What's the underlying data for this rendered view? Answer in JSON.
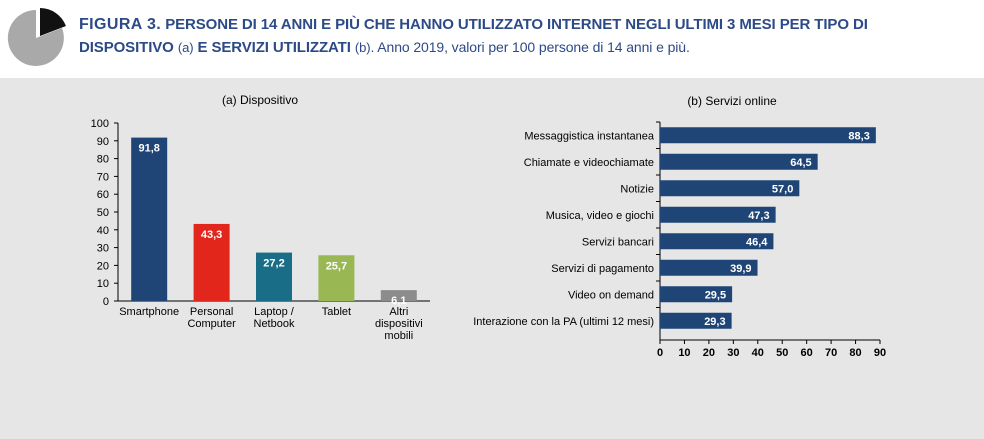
{
  "header": {
    "figure_label": "FIGURA 3.",
    "title_line1": "PERSONE DI 14 ANNI E PIÙ CHE HANNO UTILIZZATO INTERNET NEGLI ULTIMI 3 MESI PER TIPO DI",
    "title_line2_a": "DISPOSITIVO",
    "title_line2_b": "(a)",
    "title_line2_c": "E SERVIZI UTILIZZATI",
    "title_line2_d": "(b)",
    "title_line2_e": ". Anno 2019, valori per 100 persone di 14 anni e più.",
    "logo_icon": "pie-chart-icon"
  },
  "chart_data": [
    {
      "type": "bar",
      "title": "(a) Dispositivo",
      "categories": [
        [
          "Smartphone"
        ],
        [
          "Personal",
          "Computer"
        ],
        [
          "Laptop /",
          "Netbook"
        ],
        [
          "Tablet"
        ],
        [
          "Altri",
          "dispositivi",
          "mobili"
        ]
      ],
      "values": [
        91.8,
        43.3,
        27.2,
        25.7,
        6.1
      ],
      "value_labels": [
        "91,8",
        "43,3",
        "27,2",
        "25,7",
        "6,1"
      ],
      "colors": [
        "#1f4576",
        "#e3261c",
        "#1a6d86",
        "#99b853",
        "#8c8c8c"
      ],
      "ylim": [
        0,
        100
      ],
      "yticks": [
        "0",
        "10",
        "20",
        "30",
        "40",
        "50",
        "60",
        "70",
        "80",
        "90",
        "100"
      ],
      "grid": false
    },
    {
      "type": "bar",
      "orientation": "horizontal",
      "title": "(b) Servizi online",
      "categories": [
        "Messaggistica instantanea",
        "Chiamate e videochiamate",
        "Notizie",
        "Musica, video e giochi",
        "Servizi bancari",
        "Servizi di pagamento",
        "Video on demand",
        "Interazione con la PA (ultimi 12 mesi)"
      ],
      "values": [
        88.3,
        64.5,
        57.0,
        47.3,
        46.4,
        39.9,
        29.5,
        29.3
      ],
      "value_labels": [
        "88,3",
        "64,5",
        "57,0",
        "47,3",
        "46,4",
        "39,9",
        "29,5",
        "29,3"
      ],
      "color": "#1f4576",
      "xlim": [
        0,
        90
      ],
      "xticks": [
        "0",
        "10",
        "20",
        "30",
        "40",
        "50",
        "60",
        "70",
        "80",
        "90"
      ],
      "grid": false
    }
  ]
}
